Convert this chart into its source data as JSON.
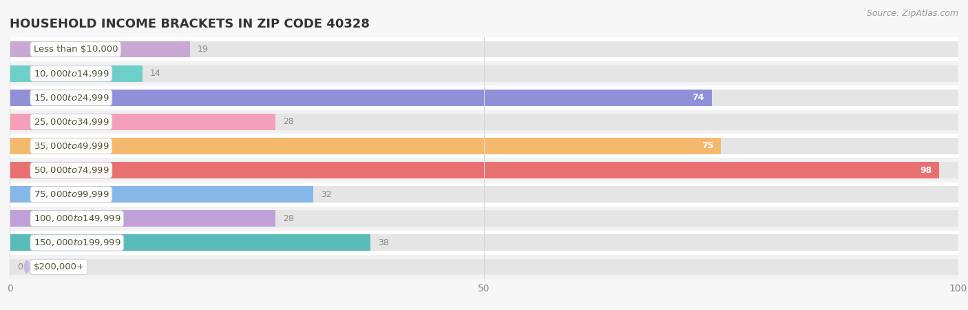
{
  "title": "HOUSEHOLD INCOME BRACKETS IN ZIP CODE 40328",
  "source": "Source: ZipAtlas.com",
  "categories": [
    "Less than $10,000",
    "$10,000 to $14,999",
    "$15,000 to $24,999",
    "$25,000 to $34,999",
    "$35,000 to $49,999",
    "$50,000 to $74,999",
    "$75,000 to $99,999",
    "$100,000 to $149,999",
    "$150,000 to $199,999",
    "$200,000+"
  ],
  "values": [
    19,
    14,
    74,
    28,
    75,
    98,
    32,
    28,
    38,
    0
  ],
  "bar_colors": [
    "#c9a8d4",
    "#6ecfca",
    "#9090d8",
    "#f4a0b8",
    "#f5b96e",
    "#e87070",
    "#85b8e8",
    "#c0a0d8",
    "#5abcb8",
    "#c8b8e8"
  ],
  "xlim": [
    0,
    100
  ],
  "background_color": "#f7f7f7",
  "row_colors": [
    "#ffffff",
    "#f2f2f2"
  ],
  "bar_bg_color": "#e5e5e5",
  "title_fontsize": 13,
  "label_fontsize": 9.5,
  "value_fontsize": 9,
  "source_fontsize": 9,
  "tick_values": [
    0,
    50,
    100
  ],
  "tick_labels": [
    "0",
    "50",
    "100"
  ],
  "inside_label_threshold": 50,
  "inside_label_color": "#ffffff",
  "outside_label_color": "#888888",
  "category_label_color": "#555533",
  "grid_color": "#d8d8d8"
}
